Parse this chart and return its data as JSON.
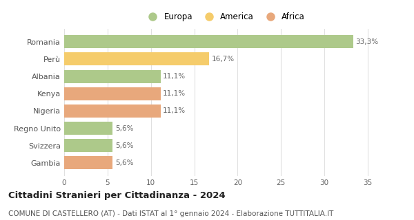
{
  "categories": [
    "Romania",
    "Perù",
    "Albania",
    "Kenya",
    "Nigeria",
    "Regno Unito",
    "Svizzera",
    "Gambia"
  ],
  "values": [
    33.3,
    16.7,
    11.1,
    11.1,
    11.1,
    5.6,
    5.6,
    5.6
  ],
  "labels": [
    "33,3%",
    "16,7%",
    "11,1%",
    "11,1%",
    "11,1%",
    "5,6%",
    "5,6%",
    "5,6%"
  ],
  "bar_colors": [
    "#adc98a",
    "#f5cc6b",
    "#adc98a",
    "#e8a87c",
    "#e8a87c",
    "#adc98a",
    "#adc98a",
    "#e8a87c"
  ],
  "legend": {
    "Europa": "#adc98a",
    "America": "#f5cc6b",
    "Africa": "#e8a87c"
  },
  "xlim": [
    0,
    37
  ],
  "xticks": [
    0,
    5,
    10,
    15,
    20,
    25,
    30,
    35
  ],
  "title": "Cittadini Stranieri per Cittadinanza - 2024",
  "subtitle": "COMUNE DI CASTELLERO (AT) - Dati ISTAT al 1° gennaio 2024 - Elaborazione TUTTITALIA.IT",
  "title_fontsize": 9.5,
  "subtitle_fontsize": 7.5,
  "background_color": "#ffffff",
  "grid_color": "#e0e0e0"
}
